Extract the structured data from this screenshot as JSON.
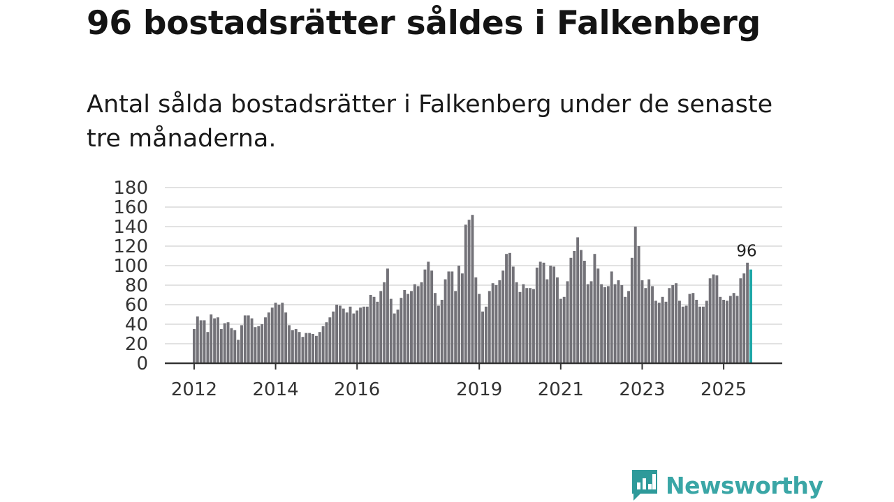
{
  "title": "96 bostadsrätter såldes i Falkenberg",
  "subtitle": "Antal sålda bostadsrätter i Falkenberg under de senaste tre månaderna.",
  "logo": {
    "name": "Newsworthy",
    "icon": "newsworthy-logo-icon"
  },
  "colors": {
    "bar": "#737278",
    "highlight": "#1aa6a6",
    "grid": "#d9d9d9",
    "axis": "#333333"
  },
  "chart_data": {
    "type": "bar",
    "title": "Antal sålda bostadsrätter i Falkenberg",
    "xlabel": "",
    "ylabel": "",
    "ylim": [
      0,
      180
    ],
    "yticks": [
      0,
      20,
      40,
      60,
      80,
      100,
      120,
      140,
      160,
      180
    ],
    "grid": true,
    "start": "2012-01",
    "xticks": [
      {
        "label": "2012",
        "index": 0
      },
      {
        "label": "2014",
        "index": 24
      },
      {
        "label": "2016",
        "index": 48
      },
      {
        "label": "2019",
        "index": 84
      },
      {
        "label": "2021",
        "index": 108
      },
      {
        "label": "2023",
        "index": 132
      },
      {
        "label": "2025",
        "index": 156
      }
    ],
    "values": [
      35,
      48,
      44,
      44,
      32,
      50,
      46,
      47,
      35,
      41,
      42,
      36,
      34,
      24,
      39,
      49,
      49,
      46,
      37,
      38,
      40,
      47,
      52,
      57,
      62,
      60,
      62,
      52,
      39,
      34,
      35,
      32,
      27,
      31,
      31,
      30,
      28,
      32,
      38,
      42,
      47,
      53,
      60,
      59,
      56,
      52,
      58,
      51,
      54,
      57,
      58,
      58,
      70,
      68,
      63,
      74,
      83,
      97,
      66,
      51,
      55,
      67,
      75,
      71,
      74,
      81,
      79,
      83,
      96,
      104,
      95,
      72,
      59,
      65,
      86,
      94,
      94,
      74,
      100,
      92,
      142,
      147,
      152,
      88,
      71,
      53,
      58,
      74,
      82,
      80,
      85,
      95,
      112,
      113,
      99,
      83,
      73,
      81,
      77,
      77,
      76,
      98,
      104,
      103,
      86,
      100,
      99,
      88,
      66,
      68,
      84,
      108,
      115,
      129,
      116,
      105,
      81,
      84,
      112,
      97,
      81,
      78,
      79,
      94,
      81,
      85,
      80,
      68,
      74,
      108,
      140,
      120,
      85,
      77,
      86,
      79,
      64,
      62,
      68,
      63,
      77,
      80,
      82,
      64,
      58,
      59,
      71,
      72,
      65,
      58,
      58,
      64,
      87,
      91,
      90,
      68,
      65,
      64,
      69,
      72,
      69,
      87,
      92,
      103,
      96
    ],
    "highlight_index": 164,
    "highlight_label": "96"
  }
}
